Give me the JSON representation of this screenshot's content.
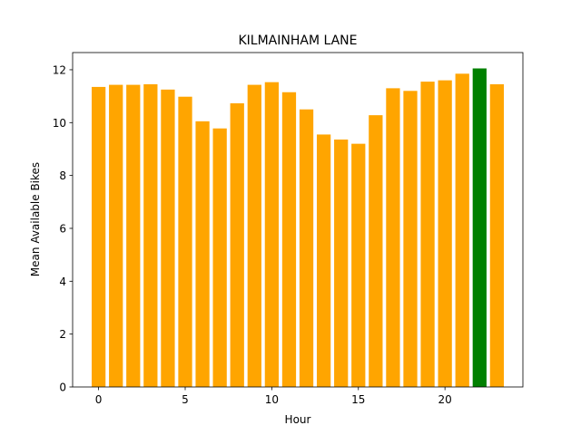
{
  "chart_data": {
    "type": "bar",
    "title": "KILMAINHAM LANE",
    "xlabel": "Hour",
    "ylabel": "Mean Available Bikes",
    "x": [
      0,
      1,
      2,
      3,
      4,
      5,
      6,
      7,
      8,
      9,
      10,
      11,
      12,
      13,
      14,
      15,
      16,
      17,
      18,
      19,
      20,
      21,
      22,
      23
    ],
    "values": [
      11.35,
      11.43,
      11.43,
      11.45,
      11.25,
      10.98,
      10.05,
      9.78,
      10.73,
      11.43,
      11.53,
      11.15,
      10.5,
      9.55,
      9.36,
      9.2,
      10.28,
      11.3,
      11.2,
      11.55,
      11.6,
      11.85,
      12.05,
      11.45
    ],
    "highlight_index": 22,
    "colors": {
      "default": "#ffa500",
      "highlight": "#008000"
    },
    "xlim": [
      -1.5,
      24.5
    ],
    "ylim": [
      0,
      12.65
    ],
    "xticks": [
      0,
      5,
      10,
      15,
      20
    ],
    "yticks": [
      0,
      2,
      4,
      6,
      8,
      10,
      12
    ],
    "grid": false,
    "legend": "none"
  }
}
